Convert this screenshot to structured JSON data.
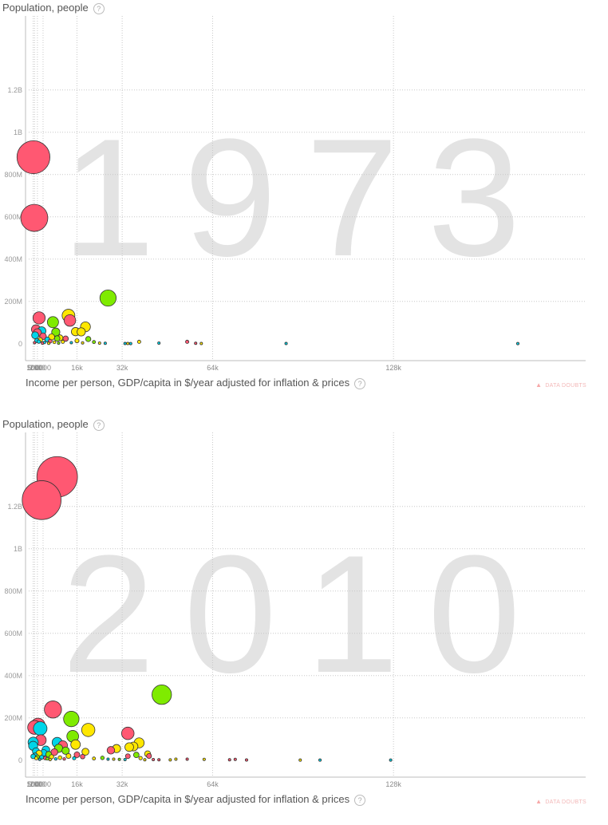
{
  "help_glyph": "?",
  "data_doubts_label": "DATA DOUBTS",
  "chart_data": [
    {
      "type": "scatter",
      "ylabel": "Population, people",
      "xlabel": "Income per person, GDP/capita in $/year adjusted for inflation & prices",
      "year_watermark": "1973",
      "x_ticks": [
        "500",
        "1000",
        "2000",
        "4000",
        "16k",
        "32k",
        "64k",
        "128k"
      ],
      "x_tick_values": [
        500,
        1000,
        2000,
        4000,
        16000,
        32000,
        64000,
        128000
      ],
      "y_ticks": [
        "0",
        "200M",
        "400M",
        "600M",
        "800M",
        "1B",
        "1.2B"
      ],
      "y_tick_values": [
        0,
        200000000,
        400000000,
        600000000,
        800000000,
        1000000000,
        1200000000
      ],
      "xlim": [
        -2200,
        196000
      ],
      "ylim": [
        -80000000,
        1550000000
      ],
      "grid": true,
      "colors": {
        "red": "#ff5872",
        "cyan": "#00d5e9",
        "green": "#7feb00",
        "yellow": "#ffe700"
      },
      "points": [
        {
          "x": 600,
          "y": 882000000,
          "color": "red"
        },
        {
          "x": 900,
          "y": 595000000,
          "color": "red"
        },
        {
          "x": 27000,
          "y": 216000000,
          "color": "green"
        },
        {
          "x": 13000,
          "y": 133000000,
          "color": "yellow"
        },
        {
          "x": 2600,
          "y": 122000000,
          "color": "red"
        },
        {
          "x": 13500,
          "y": 110000000,
          "color": "red"
        },
        {
          "x": 7500,
          "y": 102000000,
          "color": "green"
        },
        {
          "x": 19000,
          "y": 80000000,
          "color": "yellow"
        },
        {
          "x": 1500,
          "y": 68000000,
          "color": "red"
        },
        {
          "x": 3500,
          "y": 60000000,
          "color": "cyan"
        },
        {
          "x": 15500,
          "y": 57000000,
          "color": "yellow"
        },
        {
          "x": 17500,
          "y": 56000000,
          "color": "yellow"
        },
        {
          "x": 8500,
          "y": 55000000,
          "color": "green"
        },
        {
          "x": 2000,
          "y": 52000000,
          "color": "red"
        },
        {
          "x": 1200,
          "y": 40000000,
          "color": "cyan"
        },
        {
          "x": 4000,
          "y": 35000000,
          "color": "red"
        },
        {
          "x": 7000,
          "y": 32000000,
          "color": "yellow"
        },
        {
          "x": 10000,
          "y": 28000000,
          "color": "yellow"
        },
        {
          "x": 9000,
          "y": 25000000,
          "color": "green"
        },
        {
          "x": 12000,
          "y": 24000000,
          "color": "red"
        },
        {
          "x": 20000,
          "y": 22000000,
          "color": "green"
        },
        {
          "x": 5500,
          "y": 20000000,
          "color": "cyan"
        },
        {
          "x": 3000,
          "y": 18000000,
          "color": "yellow"
        },
        {
          "x": 1800,
          "y": 15000000,
          "color": "cyan"
        },
        {
          "x": 16000,
          "y": 14000000,
          "color": "yellow"
        },
        {
          "x": 6500,
          "y": 12000000,
          "color": "red"
        },
        {
          "x": 2500,
          "y": 10000000,
          "color": "cyan"
        },
        {
          "x": 11000,
          "y": 9000000,
          "color": "yellow"
        },
        {
          "x": 22000,
          "y": 8000000,
          "color": "green"
        },
        {
          "x": 8000,
          "y": 7000000,
          "color": "yellow"
        },
        {
          "x": 4500,
          "y": 6000000,
          "color": "cyan"
        },
        {
          "x": 1000,
          "y": 5000000,
          "color": "red"
        },
        {
          "x": 14000,
          "y": 5000000,
          "color": "cyan"
        },
        {
          "x": 18000,
          "y": 4000000,
          "color": "yellow"
        },
        {
          "x": 24000,
          "y": 3000000,
          "color": "yellow"
        },
        {
          "x": 9500,
          "y": 3000000,
          "color": "green"
        },
        {
          "x": 3800,
          "y": 2500000,
          "color": "red"
        },
        {
          "x": 6000,
          "y": 2000000,
          "color": "yellow"
        },
        {
          "x": 26000,
          "y": 2000000,
          "color": "cyan"
        },
        {
          "x": 38000,
          "y": 9000000,
          "color": "yellow"
        },
        {
          "x": 33000,
          "y": 1000000,
          "color": "cyan"
        },
        {
          "x": 34000,
          "y": 1000000,
          "color": "yellow"
        },
        {
          "x": 35000,
          "y": 800000,
          "color": "cyan"
        },
        {
          "x": 45000,
          "y": 3000000,
          "color": "cyan"
        },
        {
          "x": 55000,
          "y": 9000000,
          "color": "red"
        },
        {
          "x": 58000,
          "y": 2000000,
          "color": "red"
        },
        {
          "x": 60000,
          "y": 1000000,
          "color": "yellow"
        },
        {
          "x": 90000,
          "y": 1000000,
          "color": "cyan"
        },
        {
          "x": 172000,
          "y": 500000,
          "color": "cyan"
        }
      ]
    },
    {
      "type": "scatter",
      "ylabel": "Population, people",
      "xlabel": "Income per person, GDP/capita in $/year adjusted for inflation & prices",
      "year_watermark": "2010",
      "x_ticks": [
        "500",
        "1000",
        "2000",
        "4000",
        "16k",
        "32k",
        "64k",
        "128k"
      ],
      "x_tick_values": [
        500,
        1000,
        2000,
        4000,
        16000,
        32000,
        64000,
        128000
      ],
      "y_ticks": [
        "0",
        "200M",
        "400M",
        "600M",
        "800M",
        "1B",
        "1.2B"
      ],
      "y_tick_values": [
        0,
        200000000,
        400000000,
        600000000,
        800000000,
        1000000000,
        1200000000
      ],
      "xlim": [
        -2200,
        196000
      ],
      "ylim": [
        -80000000,
        1550000000
      ],
      "grid": true,
      "colors": {
        "red": "#ff5872",
        "cyan": "#00d5e9",
        "green": "#7feb00",
        "yellow": "#ffe700"
      },
      "points": [
        {
          "x": 9000,
          "y": 1340000000,
          "color": "red"
        },
        {
          "x": 3500,
          "y": 1230000000,
          "color": "red"
        },
        {
          "x": 46000,
          "y": 310000000,
          "color": "green"
        },
        {
          "x": 7500,
          "y": 240000000,
          "color": "red"
        },
        {
          "x": 14000,
          "y": 195000000,
          "color": "green"
        },
        {
          "x": 2200,
          "y": 165000000,
          "color": "red"
        },
        {
          "x": 1000,
          "y": 155000000,
          "color": "red"
        },
        {
          "x": 3000,
          "y": 150000000,
          "color": "cyan"
        },
        {
          "x": 20000,
          "y": 143000000,
          "color": "yellow"
        },
        {
          "x": 34000,
          "y": 127000000,
          "color": "red"
        },
        {
          "x": 14500,
          "y": 113000000,
          "color": "green"
        },
        {
          "x": 3200,
          "y": 95000000,
          "color": "red"
        },
        {
          "x": 500,
          "y": 85000000,
          "color": "cyan"
        },
        {
          "x": 9000,
          "y": 84000000,
          "color": "cyan"
        },
        {
          "x": 38000,
          "y": 82000000,
          "color": "yellow"
        },
        {
          "x": 15500,
          "y": 74000000,
          "color": "yellow"
        },
        {
          "x": 11000,
          "y": 70000000,
          "color": "red"
        },
        {
          "x": 500,
          "y": 68000000,
          "color": "cyan"
        },
        {
          "x": 36000,
          "y": 65000000,
          "color": "yellow"
        },
        {
          "x": 34500,
          "y": 62000000,
          "color": "yellow"
        },
        {
          "x": 9500,
          "y": 56000000,
          "color": "green"
        },
        {
          "x": 30000,
          "y": 55000000,
          "color": "yellow"
        },
        {
          "x": 5000,
          "y": 49000000,
          "color": "cyan"
        },
        {
          "x": 28000,
          "y": 47000000,
          "color": "red"
        },
        {
          "x": 12000,
          "y": 45000000,
          "color": "green"
        },
        {
          "x": 1500,
          "y": 42000000,
          "color": "cyan"
        },
        {
          "x": 19000,
          "y": 40000000,
          "color": "yellow"
        },
        {
          "x": 8000,
          "y": 38000000,
          "color": "red"
        },
        {
          "x": 4200,
          "y": 35000000,
          "color": "cyan"
        },
        {
          "x": 2600,
          "y": 32000000,
          "color": "yellow"
        },
        {
          "x": 41000,
          "y": 30000000,
          "color": "yellow"
        },
        {
          "x": 6000,
          "y": 28000000,
          "color": "green"
        },
        {
          "x": 16000,
          "y": 26000000,
          "color": "red"
        },
        {
          "x": 37000,
          "y": 25000000,
          "color": "green"
        },
        {
          "x": 1200,
          "y": 22000000,
          "color": "cyan"
        },
        {
          "x": 13000,
          "y": 20000000,
          "color": "yellow"
        },
        {
          "x": 41500,
          "y": 20000000,
          "color": "red"
        },
        {
          "x": 34000,
          "y": 19000000,
          "color": "red"
        },
        {
          "x": 500,
          "y": 18000000,
          "color": "cyan"
        },
        {
          "x": 18000,
          "y": 17000000,
          "color": "red"
        },
        {
          "x": 7000,
          "y": 16000000,
          "color": "yellow"
        },
        {
          "x": 2000,
          "y": 15000000,
          "color": "green"
        },
        {
          "x": 3500,
          "y": 14000000,
          "color": "cyan"
        },
        {
          "x": 10000,
          "y": 12000000,
          "color": "yellow"
        },
        {
          "x": 25000,
          "y": 11000000,
          "color": "green"
        },
        {
          "x": 38500,
          "y": 10000000,
          "color": "yellow"
        },
        {
          "x": 4800,
          "y": 10000000,
          "color": "red"
        },
        {
          "x": 1600,
          "y": 9000000,
          "color": "yellow"
        },
        {
          "x": 15000,
          "y": 9000000,
          "color": "cyan"
        },
        {
          "x": 22000,
          "y": 8000000,
          "color": "yellow"
        },
        {
          "x": 5500,
          "y": 7000000,
          "color": "green"
        },
        {
          "x": 8500,
          "y": 6000000,
          "color": "cyan"
        },
        {
          "x": 11500,
          "y": 6000000,
          "color": "red"
        },
        {
          "x": 27000,
          "y": 5000000,
          "color": "cyan"
        },
        {
          "x": 29000,
          "y": 5000000,
          "color": "yellow"
        },
        {
          "x": 31000,
          "y": 4000000,
          "color": "green"
        },
        {
          "x": 2800,
          "y": 4000000,
          "color": "cyan"
        },
        {
          "x": 6500,
          "y": 3000000,
          "color": "yellow"
        },
        {
          "x": 33000,
          "y": 3000000,
          "color": "cyan"
        },
        {
          "x": 40000,
          "y": 2000000,
          "color": "yellow"
        },
        {
          "x": 43000,
          "y": 3000000,
          "color": "red"
        },
        {
          "x": 45000,
          "y": 2000000,
          "color": "red"
        },
        {
          "x": 49000,
          "y": 1500000,
          "color": "yellow"
        },
        {
          "x": 51000,
          "y": 5000000,
          "color": "yellow"
        },
        {
          "x": 55000,
          "y": 5000000,
          "color": "red"
        },
        {
          "x": 61000,
          "y": 4000000,
          "color": "yellow"
        },
        {
          "x": 70000,
          "y": 2000000,
          "color": "red"
        },
        {
          "x": 72000,
          "y": 4000000,
          "color": "red"
        },
        {
          "x": 76000,
          "y": 1000000,
          "color": "red"
        },
        {
          "x": 95000,
          "y": 500000,
          "color": "yellow"
        },
        {
          "x": 102000,
          "y": 500000,
          "color": "cyan"
        },
        {
          "x": 127000,
          "y": 800000,
          "color": "cyan"
        }
      ]
    }
  ]
}
